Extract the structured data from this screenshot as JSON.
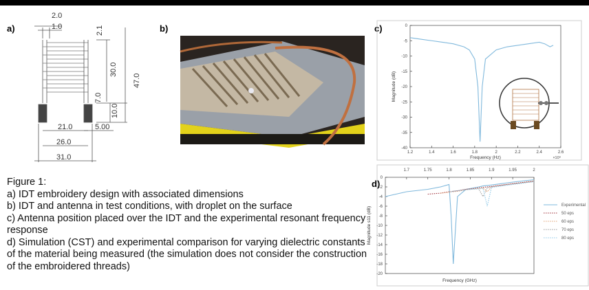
{
  "panels": {
    "a": "a)",
    "b": "b)",
    "c": "c)",
    "d": "d)"
  },
  "drawing": {
    "dimensions": [
      "2.0",
      "1.0",
      "2.1",
      "30.0",
      "47.0",
      "7.0",
      "10.0",
      "21.0",
      "5.00",
      "26.0",
      "31.0"
    ]
  },
  "caption": {
    "title": "Figure 1:",
    "items": [
      "a) IDT embroidery design with associated dimensions",
      "b) IDT and antenna in test conditions, with droplet on the surface",
      "c) Antenna position placed over the IDT and the experimental resonant frequency response",
      "d) Simulation (CST) and experimental comparison for  varying dielectric constants of the material being measured (the simulation does not consider the construction of the embroidered threads)"
    ]
  },
  "chart_data": [
    {
      "type": "line",
      "xlabel": "Frequency (Hz)",
      "ylabel": "Magnitude (dB)",
      "x_multiplier": "×10⁹",
      "x": [
        1.2,
        1.3,
        1.4,
        1.5,
        1.6,
        1.7,
        1.75,
        1.8,
        1.83,
        1.85,
        1.87,
        1.9,
        2.0,
        2.1,
        2.2,
        2.3,
        2.4,
        2.45,
        2.5,
        2.53
      ],
      "values": [
        -4,
        -4.5,
        -5,
        -5.5,
        -6,
        -7,
        -8,
        -11,
        -20,
        -38,
        -20,
        -11,
        -8,
        -7,
        -6.5,
        -6,
        -5.5,
        -6,
        -7,
        -6.5
      ],
      "color": "#7fb8dc",
      "xlim": [
        1.2,
        2.6
      ],
      "xticks": [
        1.2,
        1.4,
        1.6,
        1.8,
        2,
        2.2,
        2.4,
        2.6
      ],
      "ylim": [
        -40,
        0
      ],
      "yticks": [
        0,
        -5,
        -10,
        -15,
        -20,
        -25,
        -30,
        -35,
        -40
      ]
    },
    {
      "type": "line",
      "xlabel": "Frequency (GHz)",
      "ylabel": "Magnitude s11 (dB)",
      "x_axis": "top",
      "legend": "right",
      "x": [
        1.65,
        1.7,
        1.75,
        1.78,
        1.8,
        1.805,
        1.81,
        1.82,
        1.84,
        1.87,
        1.88,
        1.89,
        1.9,
        1.95,
        2.0
      ],
      "series": [
        {
          "name": "Experimental",
          "color": "#7fb8dc",
          "line_style": "solid",
          "values": [
            -4,
            -3,
            -2.5,
            -2,
            -1.5,
            -8,
            -18,
            -4,
            -2.5,
            -2,
            -1.8,
            -1.7,
            -1.6,
            -1,
            -0.5
          ]
        },
        {
          "name": "50 eps",
          "color": "#a0303a",
          "line_style": "dotted",
          "values": [
            null,
            null,
            -3.5,
            -3.3,
            -3,
            -3,
            -2.9,
            -2.8,
            -2.5,
            -2.2,
            -2.1,
            -2,
            -1.9,
            -1.3,
            -0.8
          ]
        },
        {
          "name": "60 eps",
          "color": "#e0a070",
          "line_style": "dotted",
          "values": [
            null,
            null,
            null,
            -3.3,
            -3.1,
            -3,
            -3,
            -2.9,
            -2.6,
            -2.3,
            -2.2,
            -3,
            -2,
            -1.4,
            -0.8
          ]
        },
        {
          "name": "70 eps",
          "color": "#999999",
          "line_style": "dotted",
          "values": [
            null,
            null,
            null,
            null,
            -3,
            -3,
            -2.9,
            -2.8,
            -2.5,
            -2.4,
            -4,
            -2.2,
            -2,
            -1.4,
            -0.9
          ]
        },
        {
          "name": "80 eps",
          "color": "#8cc8e8",
          "line_style": "dotted",
          "values": [
            null,
            null,
            null,
            null,
            null,
            -3,
            -2.9,
            -2.8,
            -2.6,
            -2.4,
            -2.3,
            -6,
            -2.1,
            -1.5,
            -0.9
          ]
        }
      ],
      "xlim": [
        1.65,
        2.0
      ],
      "xticks": [
        1.7,
        1.75,
        1.8,
        1.85,
        1.9,
        1.95,
        2
      ],
      "ylim": [
        -20,
        0
      ],
      "yticks": [
        0,
        -2,
        -4,
        -6,
        -8,
        -10,
        -12,
        -14,
        -16,
        -18,
        -20
      ]
    }
  ]
}
